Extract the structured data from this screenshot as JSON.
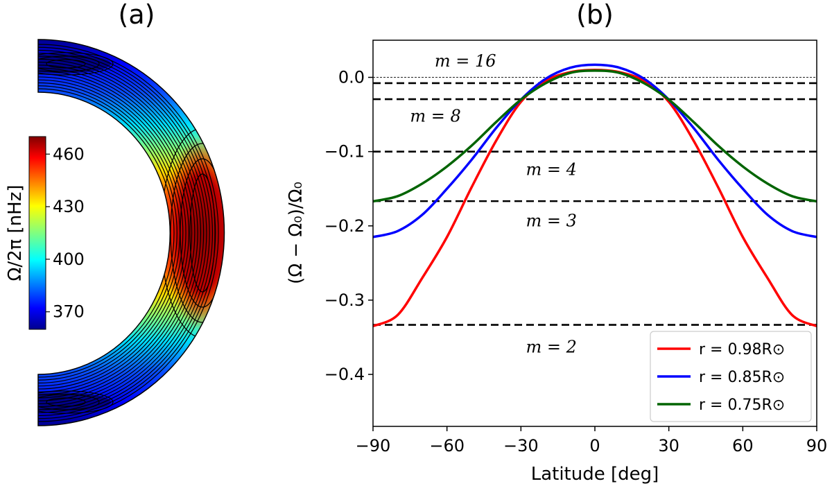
{
  "panel_a": {
    "title": "(a)",
    "colorbar": {
      "label": "Ω/2π [nHz]",
      "ticks": [
        "370",
        "400",
        "430",
        "460"
      ],
      "range": [
        360,
        470
      ]
    }
  },
  "panel_b": {
    "title": "(b)"
  },
  "chart_data": [
    {
      "type": "heatmap",
      "title": "(a)",
      "description_units": "nHz",
      "colorbar_label": "Ω/2π [nHz]",
      "colorbar_ticks": [
        370,
        400,
        430,
        460
      ],
      "value_range": [
        360,
        470
      ],
      "colormap": "jet",
      "equator_max": 468,
      "pole_min": 360
    },
    {
      "type": "line",
      "title": "(b)",
      "xlabel": "Latitude [deg]",
      "ylabel": "(Ω − Ω₀)/Ω₀",
      "xlim": [
        -90,
        90
      ],
      "ylim": [
        -0.47,
        0.05
      ],
      "xticks": [
        -90,
        -60,
        -30,
        0,
        30,
        60,
        90
      ],
      "xtick_labels": [
        "−90",
        "−60",
        "−30",
        "0",
        "30",
        "60",
        "90"
      ],
      "yticks": [
        0.0,
        -0.1,
        -0.2,
        -0.3,
        -0.4
      ],
      "ytick_labels": [
        "0.0",
        "−0.1",
        "−0.2",
        "−0.3",
        "−0.4"
      ],
      "x": [
        -90,
        -80,
        -70,
        -60,
        -50,
        -40,
        -30,
        -20,
        -10,
        0,
        10,
        20,
        30,
        40,
        50,
        60,
        70,
        80,
        90
      ],
      "series": [
        {
          "name": "r = 0.98R⊙",
          "legend_r": "r = 0.98R",
          "color": "#ff0000",
          "values": [
            -0.335,
            -0.32,
            -0.27,
            -0.215,
            -0.148,
            -0.085,
            -0.033,
            -0.005,
            0.007,
            0.01,
            0.007,
            -0.005,
            -0.033,
            -0.085,
            -0.148,
            -0.215,
            -0.27,
            -0.32,
            -0.335
          ]
        },
        {
          "name": "r = 0.85R⊙",
          "legend_r": "r = 0.85R",
          "color": "#0000ff",
          "values": [
            -0.215,
            -0.207,
            -0.185,
            -0.15,
            -0.111,
            -0.068,
            -0.03,
            -0.002,
            0.013,
            0.017,
            0.013,
            -0.002,
            -0.03,
            -0.068,
            -0.111,
            -0.15,
            -0.185,
            -0.207,
            -0.215
          ]
        },
        {
          "name": "r = 0.75R⊙",
          "legend_r": "r = 0.75R",
          "color": "#006400",
          "values": [
            -0.167,
            -0.16,
            -0.143,
            -0.12,
            -0.092,
            -0.06,
            -0.03,
            -0.008,
            0.006,
            0.009,
            0.006,
            -0.008,
            -0.03,
            -0.06,
            -0.092,
            -0.12,
            -0.143,
            -0.16,
            -0.167
          ]
        }
      ],
      "reference_lines": [
        {
          "y": 0.0,
          "style": "thin-dashed"
        },
        {
          "y": -0.0078,
          "style": "dashed",
          "label": "m = 16"
        },
        {
          "y": -0.0294,
          "style": "dashed",
          "label": "m = 8"
        },
        {
          "y": -0.1,
          "style": "dashed",
          "label": "m = 4"
        },
        {
          "y": -0.1667,
          "style": "dashed",
          "label": "m = 3"
        },
        {
          "y": -0.3333,
          "style": "dashed",
          "label": "m = 2"
        }
      ],
      "annotations": [
        {
          "text": "m = 16",
          "x": -65,
          "y": 0.022
        },
        {
          "text": "m = 8",
          "x": -75,
          "y": -0.052
        },
        {
          "text": "m = 4",
          "x": -28,
          "y": -0.124
        },
        {
          "text": "m = 3",
          "x": -28,
          "y": -0.193
        },
        {
          "text": "m = 2",
          "x": -28,
          "y": -0.363
        }
      ],
      "legend_position": "lower-right"
    }
  ]
}
